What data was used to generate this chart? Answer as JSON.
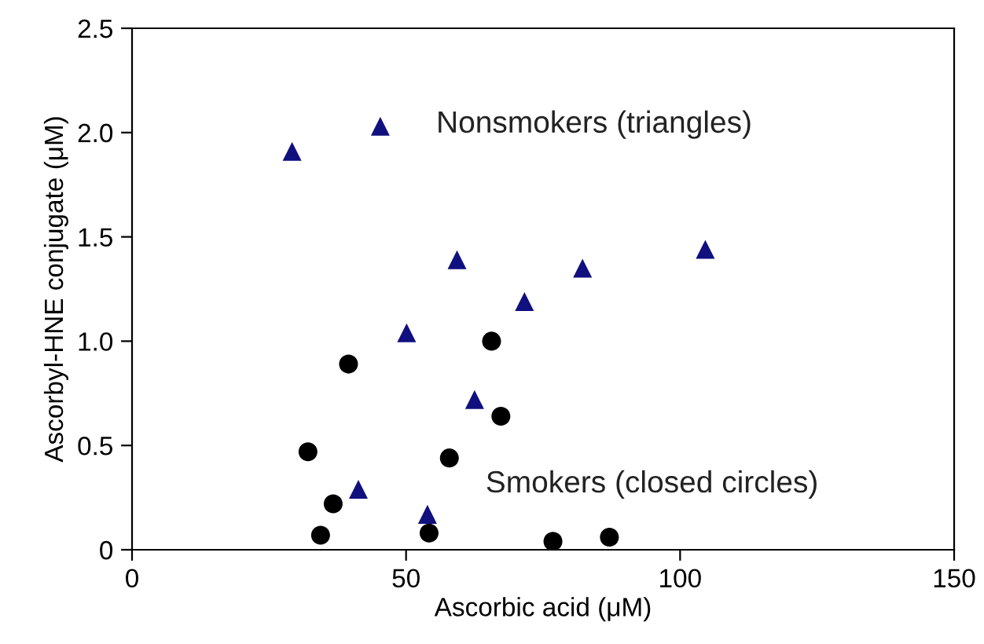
{
  "chart_data": {
    "type": "scatter",
    "xlabel": "Ascorbic acid (μM)",
    "ylabel": "Ascorbyl-HNE conjugate (μM)",
    "xlim": [
      0,
      150
    ],
    "xticks": [
      0,
      50,
      100,
      150
    ],
    "ylim": [
      0,
      2.5
    ],
    "yticks": [
      0,
      0.5,
      {
        "value": 1,
        "label": "1.0"
      },
      1.5,
      {
        "value": 2,
        "label": "2.0"
      },
      2.5
    ],
    "grid": false,
    "legend": false,
    "series": [
      {
        "color": "#10107f",
        "marker": "triangle",
        "x": [
          29.2,
          45.3,
          50.1,
          59.3,
          82.2,
          71.6,
          62.5,
          41.3,
          53.9,
          104.6
        ],
        "values": [
          1.91,
          2.03,
          1.04,
          1.39,
          1.35,
          1.19,
          0.72,
          0.29,
          0.17,
          1.44
        ]
      },
      {
        "color": "#000000",
        "marker": "circle",
        "x": [
          32.1,
          36.7,
          34.4,
          39.5,
          54.2,
          57.9,
          65.6,
          67.3,
          76.8,
          87.1
        ],
        "values": [
          0.47,
          0.22,
          0.07,
          0.89,
          0.08,
          0.44,
          1.0,
          0.64,
          0.04,
          0.06
        ]
      }
    ],
    "annotations": [
      "Nonsmokers (triangles)",
      "Smokers (closed circles)"
    ]
  }
}
